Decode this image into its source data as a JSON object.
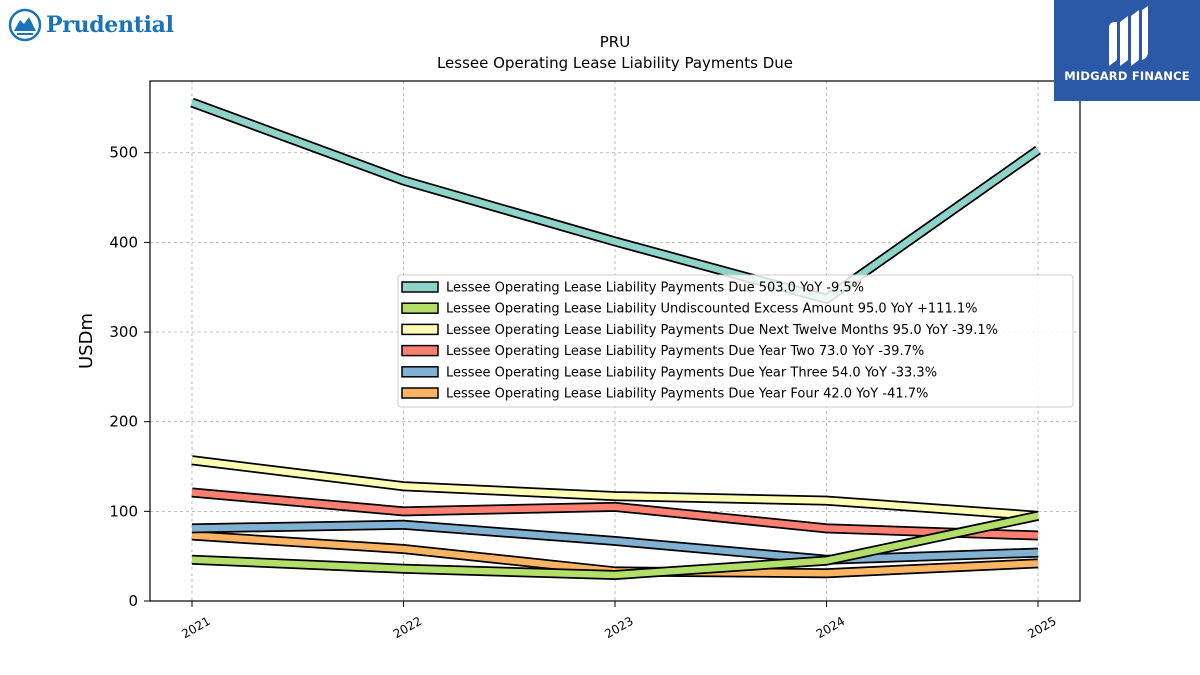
{
  "brand": {
    "name": "Prudential",
    "icon": "rock-icon",
    "color": "#1a73b8"
  },
  "badge": {
    "label": "MIDGARD FINANCE",
    "bg": "#2b58a7"
  },
  "chart_data": {
    "type": "line",
    "title": "PRU",
    "subtitle": "Lessee Operating Lease Liability Payments Due",
    "ylabel": "USDm",
    "xlabel": "",
    "categories": [
      "2021",
      "2022",
      "2023",
      "2024",
      "2025"
    ],
    "ylim": [
      0,
      580
    ],
    "yticks": [
      0,
      100,
      200,
      300,
      400,
      500
    ],
    "grid": true,
    "legend_position": "center-right",
    "series": [
      {
        "name": "Lessee Operating Lease Liability Payments Due",
        "legend": "Lessee Operating Lease Liability Payments Due  503.0 YoY -9.5%",
        "color": "#8dd3c7",
        "values": [
          556,
          469,
          401,
          337,
          503
        ]
      },
      {
        "name": "Lessee Operating Lease Liability Undiscounted Excess Amount",
        "legend": "Lessee Operating Lease Liability Undiscounted Excess Amount  95.0 YoY +111.1%",
        "color": "#b3de69",
        "values": [
          46,
          36,
          29,
          45,
          95
        ]
      },
      {
        "name": "Lessee Operating Lease Liability Payments Due Next Twelve Months",
        "legend": "Lessee Operating Lease Liability Payments Due Next Twelve Months  95.0 YoY -39.1%",
        "color": "#ffffb3",
        "values": [
          157,
          128,
          117,
          112,
          95
        ]
      },
      {
        "name": "Lessee Operating Lease Liability Payments Due Year Two",
        "legend": "Lessee Operating Lease Liability Payments Due Year Two  73.0 YoY -39.7%",
        "color": "#fb8072",
        "values": [
          121,
          100,
          105,
          81,
          73
        ]
      },
      {
        "name": "Lessee Operating Lease Liability Payments Due Year Three",
        "legend": "Lessee Operating Lease Liability Payments Due Year Three  54.0 YoY -33.3%",
        "color": "#80b1d3",
        "values": [
          81,
          85,
          67,
          46,
          54
        ]
      },
      {
        "name": "Lessee Operating Lease Liability Payments Due Year Four",
        "legend": "Lessee Operating Lease Liability Payments Due Year Four  42.0 YoY -41.7%",
        "color": "#fdb462",
        "values": [
          73,
          58,
          33,
          31,
          42
        ]
      }
    ]
  }
}
